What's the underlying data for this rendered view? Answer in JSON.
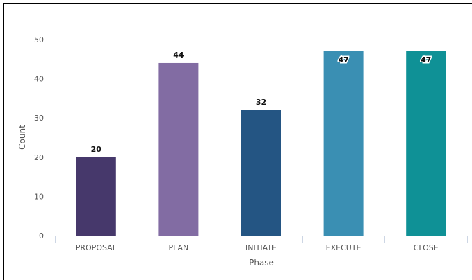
{
  "chart_data": {
    "type": "bar",
    "categories": [
      "PROPOSAL",
      "PLAN",
      "INITIATE",
      "EXECUTE",
      "CLOSE"
    ],
    "values": [
      20,
      44,
      32,
      47,
      47
    ],
    "colors": [
      "#46386b",
      "#826ca3",
      "#245583",
      "#3a8fb3",
      "#0f9196"
    ],
    "xlabel": "Phase",
    "ylabel": "Count",
    "ylim": [
      0,
      50
    ],
    "yticks": [
      0,
      10,
      20,
      30,
      40,
      50
    ],
    "grid": false,
    "legend": "none",
    "data_labels": true
  }
}
